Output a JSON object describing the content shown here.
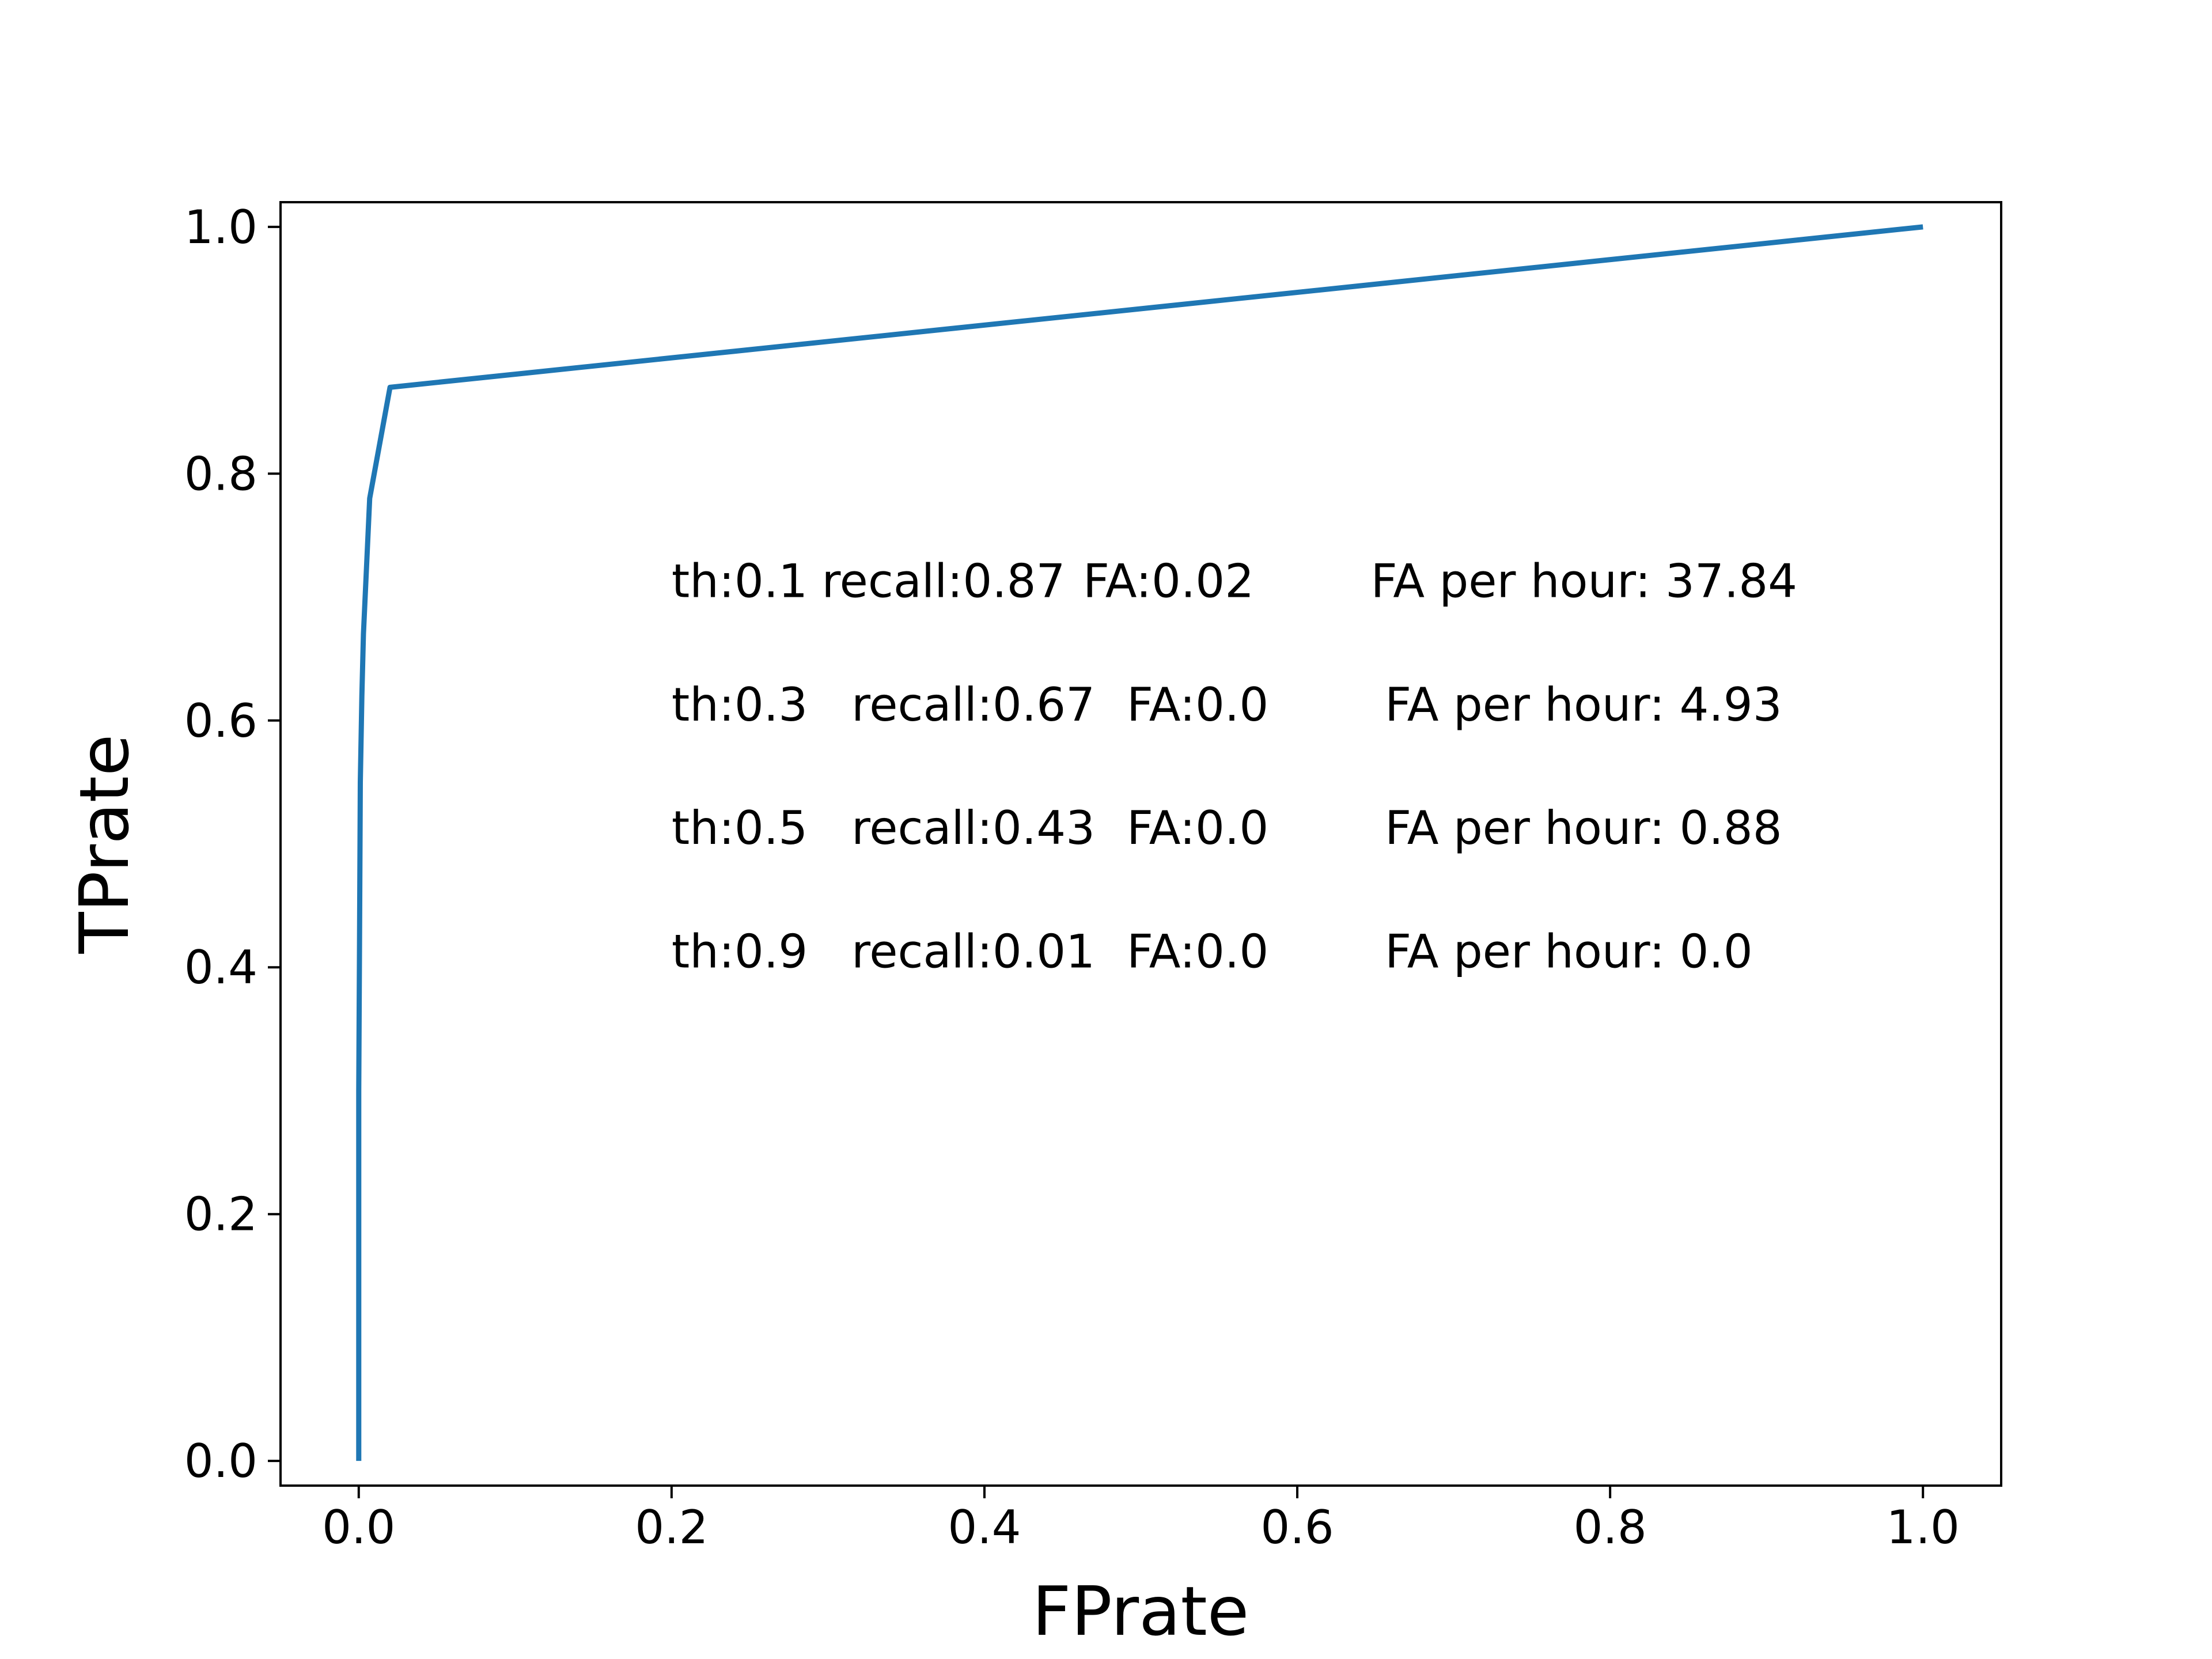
{
  "chart_data": {
    "type": "line",
    "title": "",
    "xlabel": "FPrate",
    "ylabel": "TPrate",
    "xlim": [
      -0.05,
      1.05
    ],
    "ylim": [
      -0.02,
      1.02
    ],
    "xticks": [
      0.0,
      0.2,
      0.4,
      0.6,
      0.8,
      1.0
    ],
    "xtick_labels": [
      "0.0",
      "0.2",
      "0.4",
      "0.6",
      "0.8",
      "1.0"
    ],
    "yticks": [
      0.0,
      0.2,
      0.4,
      0.6,
      0.8,
      1.0
    ],
    "ytick_labels": [
      "0.0",
      "0.2",
      "0.4",
      "0.6",
      "0.8",
      "1.0"
    ],
    "grid": false,
    "legend": null,
    "series": [
      {
        "color": "#1f77b4",
        "x": [
          0.0,
          0.0,
          0.0005,
          0.001,
          0.002,
          0.003,
          0.007,
          0.02,
          1.0
        ],
        "y": [
          0.0,
          0.3,
          0.42,
          0.55,
          0.62,
          0.67,
          0.78,
          0.87,
          1.0
        ]
      }
    ],
    "annotations": [
      {
        "x": 0.2,
        "y": 0.713,
        "segments": [
          {
            "x": 0.2,
            "text": "th:0.1"
          },
          {
            "x": 0.296,
            "text": "recall:0.87"
          },
          {
            "x": 0.463,
            "text": "FA:0.02"
          },
          {
            "x": 0.647,
            "text": "FA per hour: 37.84"
          }
        ]
      },
      {
        "x": 0.2,
        "y": 0.613,
        "segments": [
          {
            "x": 0.2,
            "text": "th:0.3"
          },
          {
            "x": 0.315,
            "text": "recall:0.67"
          },
          {
            "x": 0.491,
            "text": "FA:0.0"
          },
          {
            "x": 0.656,
            "text": "FA per hour: 4.93"
          }
        ]
      },
      {
        "x": 0.2,
        "y": 0.513,
        "segments": [
          {
            "x": 0.2,
            "text": "th:0.5"
          },
          {
            "x": 0.315,
            "text": "recall:0.43"
          },
          {
            "x": 0.491,
            "text": "FA:0.0"
          },
          {
            "x": 0.656,
            "text": "FA per hour: 0.88"
          }
        ]
      },
      {
        "x": 0.2,
        "y": 0.413,
        "segments": [
          {
            "x": 0.2,
            "text": "th:0.9"
          },
          {
            "x": 0.315,
            "text": "recall:0.01"
          },
          {
            "x": 0.491,
            "text": "FA:0.0"
          },
          {
            "x": 0.656,
            "text": "FA per hour: 0.0"
          }
        ]
      }
    ]
  }
}
